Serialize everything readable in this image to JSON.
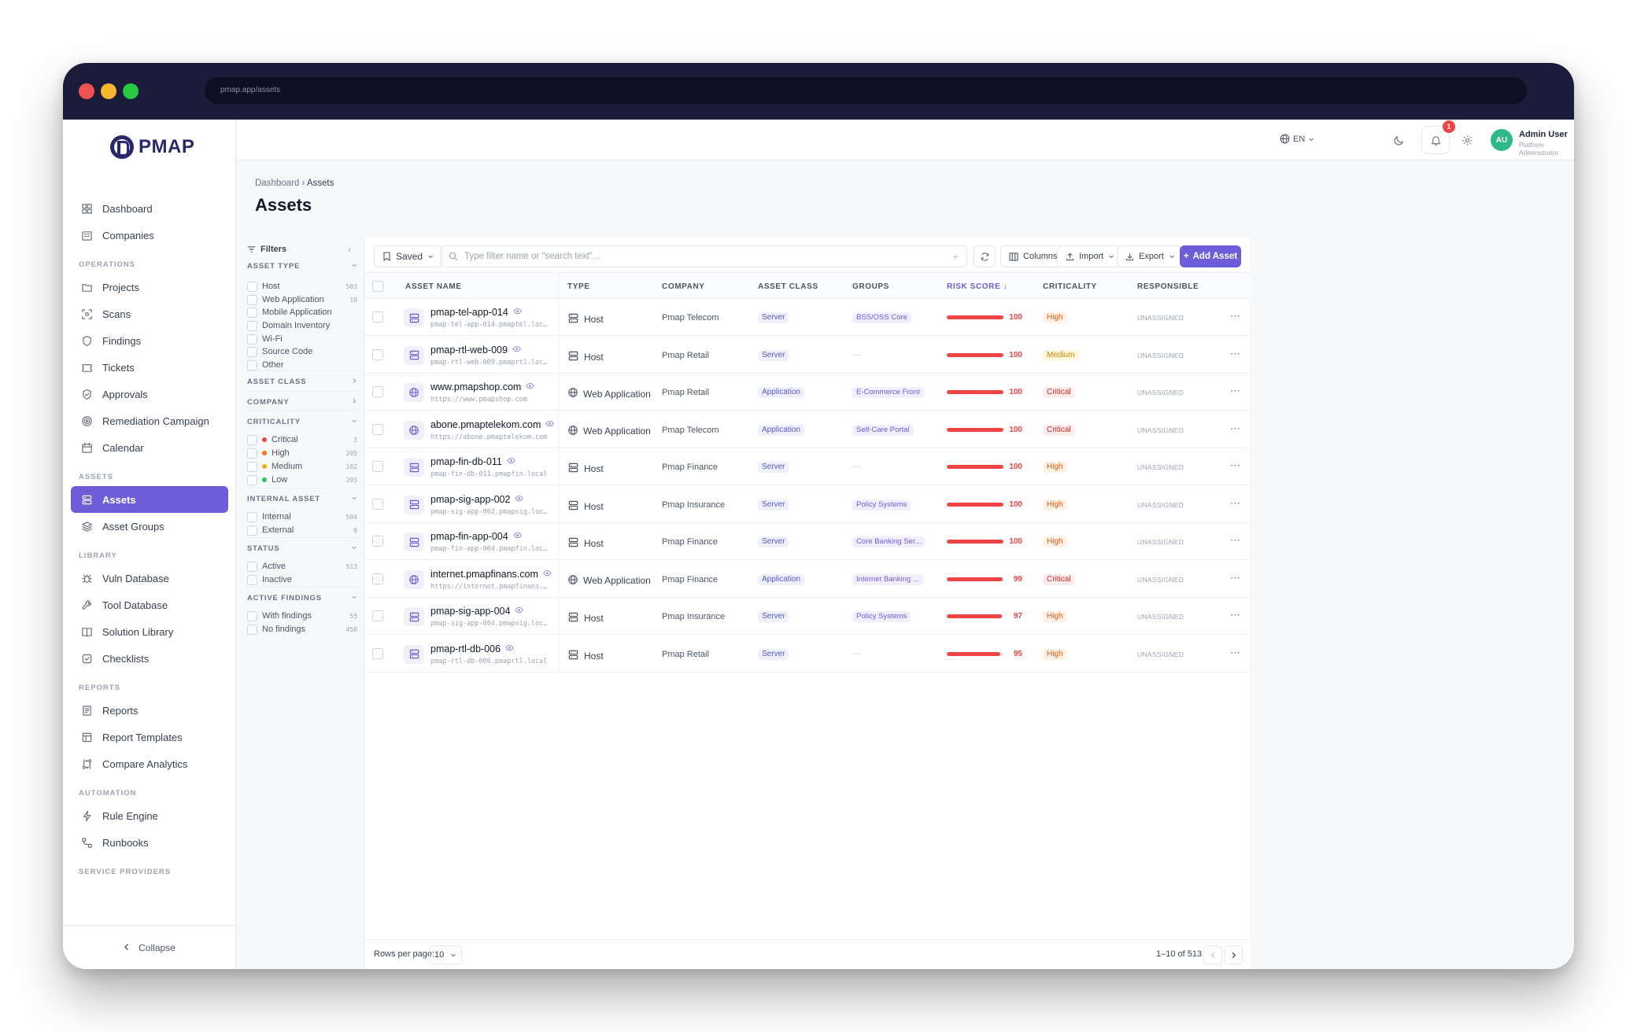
{
  "browser": {
    "url": "pmap.app/assets"
  },
  "brand": {
    "name": "PMAP"
  },
  "sidebar": {
    "items": [
      {
        "label": "Dashboard",
        "icon": "grid-icon"
      },
      {
        "label": "Companies",
        "icon": "building-icon"
      }
    ],
    "sections": [
      {
        "title": "OPERATIONS",
        "items": [
          {
            "label": "Projects",
            "icon": "folder-icon"
          },
          {
            "label": "Scans",
            "icon": "scan-icon"
          },
          {
            "label": "Findings",
            "icon": "shield-icon"
          },
          {
            "label": "Tickets",
            "icon": "ticket-icon"
          },
          {
            "label": "Approvals",
            "icon": "shield-check-icon"
          },
          {
            "label": "Remediation Campaign",
            "icon": "target-icon"
          },
          {
            "label": "Calendar",
            "icon": "calendar-icon"
          }
        ]
      },
      {
        "title": "ASSETS",
        "items": [
          {
            "label": "Assets",
            "icon": "server-icon",
            "active": true
          },
          {
            "label": "Asset Groups",
            "icon": "layers-icon"
          }
        ]
      },
      {
        "title": "LIBRARY",
        "items": [
          {
            "label": "Vuln Database",
            "icon": "bug-icon"
          },
          {
            "label": "Tool Database",
            "icon": "wrench-icon"
          },
          {
            "label": "Solution Library",
            "icon": "book-icon"
          },
          {
            "label": "Checklists",
            "icon": "checklist-icon"
          }
        ]
      },
      {
        "title": "REPORTS",
        "items": [
          {
            "label": "Reports",
            "icon": "report-icon"
          },
          {
            "label": "Report Templates",
            "icon": "template-icon"
          },
          {
            "label": "Compare Analytics",
            "icon": "compare-icon"
          }
        ]
      },
      {
        "title": "AUTOMATION",
        "items": [
          {
            "label": "Rule Engine",
            "icon": "bolt-icon"
          },
          {
            "label": "Runbooks",
            "icon": "workflow-icon"
          }
        ]
      },
      {
        "title": "SERVICE PROVIDERS",
        "items": []
      }
    ],
    "collapse_label": "Collapse"
  },
  "topbar": {
    "language": "EN",
    "notifications_count": "1",
    "user_initials": "AU",
    "user_name": "Admin User",
    "user_role": "Platform Administrator"
  },
  "breadcrumb": {
    "parent": "Dashboard",
    "current": "Assets"
  },
  "page_title": "Assets",
  "filters": {
    "title": "Filters",
    "sections": [
      {
        "title": "ASSET TYPE",
        "expanded": true,
        "options": [
          {
            "label": "Host",
            "count": "503"
          },
          {
            "label": "Web Application",
            "count": "10"
          },
          {
            "label": "Mobile Application",
            "count": ""
          },
          {
            "label": "Domain Inventory",
            "count": ""
          },
          {
            "label": "Wi-Fi",
            "count": ""
          },
          {
            "label": "Source Code",
            "count": ""
          },
          {
            "label": "Other",
            "count": ""
          }
        ]
      },
      {
        "title": "ASSET CLASS",
        "expanded": false,
        "options": []
      },
      {
        "title": "COMPANY",
        "expanded": false,
        "options": []
      },
      {
        "title": "CRITICALITY",
        "expanded": true,
        "options": [
          {
            "label": "Critical",
            "count": "3",
            "color": "#ef4444"
          },
          {
            "label": "High",
            "count": "205",
            "color": "#f97316"
          },
          {
            "label": "Medium",
            "count": "102",
            "color": "#eab308"
          },
          {
            "label": "Low",
            "count": "203",
            "color": "#22c55e"
          }
        ]
      },
      {
        "title": "INTERNAL ASSET",
        "expanded": true,
        "options": [
          {
            "label": "Internal",
            "count": "504"
          },
          {
            "label": "External",
            "count": "9"
          }
        ]
      },
      {
        "title": "STATUS",
        "expanded": true,
        "options": [
          {
            "label": "Active",
            "count": "513"
          },
          {
            "label": "Inactive",
            "count": ""
          }
        ]
      },
      {
        "title": "ACTIVE FINDINGS",
        "expanded": true,
        "options": [
          {
            "label": "With findings",
            "count": "55"
          },
          {
            "label": "No findings",
            "count": "458"
          }
        ]
      }
    ]
  },
  "toolbar": {
    "saved_label": "Saved",
    "search_placeholder": "Type filter name or \"search text\"...",
    "columns_label": "Columns",
    "import_label": "Import",
    "export_label": "Export",
    "add_label": "Add Asset"
  },
  "table": {
    "headers": [
      "ASSET NAME",
      "TYPE",
      "COMPANY",
      "ASSET CLASS",
      "GROUPS",
      "RISK SCORE ↓",
      "CRITICALITY",
      "RESPONSIBLE"
    ],
    "rows": [
      {
        "name": "pmap-tel-app-014",
        "host": "pmap-tel-app-014.pmaptel.local",
        "type": "Host",
        "company": "Pmap Telecom",
        "asset_class": "Server",
        "group": "BSS/OSS Core",
        "risk": 100,
        "criticality": "High",
        "responsible": "UNASSIGNED"
      },
      {
        "name": "pmap-rtl-web-009",
        "host": "pmap-rtl-web-009.pmaprtl.local",
        "type": "Host",
        "company": "Pmap Retail",
        "asset_class": "Server",
        "group": "—",
        "risk": 100,
        "criticality": "Medium",
        "responsible": "UNASSIGNED"
      },
      {
        "name": "www.pmapshop.com",
        "host": "https://www.pmapshop.com",
        "type": "Web Application",
        "company": "Pmap Retail",
        "asset_class": "Application",
        "group": "E-Commerce Front",
        "risk": 100,
        "criticality": "Critical",
        "responsible": "UNASSIGNED"
      },
      {
        "name": "abone.pmaptelekom.com",
        "host": "https://abone.pmaptelekom.com",
        "type": "Web Application",
        "company": "Pmap Telecom",
        "asset_class": "Application",
        "group": "Self-Care Portal",
        "risk": 100,
        "criticality": "Critical",
        "responsible": "UNASSIGNED"
      },
      {
        "name": "pmap-fin-db-011",
        "host": "pmap-fin-db-011.pmapfin.local",
        "type": "Host",
        "company": "Pmap Finance",
        "asset_class": "Server",
        "group": "—",
        "risk": 100,
        "criticality": "High",
        "responsible": "UNASSIGNED"
      },
      {
        "name": "pmap-sig-app-002",
        "host": "pmap-sig-app-002.pmapsig.local",
        "type": "Host",
        "company": "Pmap Insurance",
        "asset_class": "Server",
        "group": "Policy Systems",
        "risk": 100,
        "criticality": "High",
        "responsible": "UNASSIGNED"
      },
      {
        "name": "pmap-fin-app-004",
        "host": "pmap-fin-app-004.pmapfin.local",
        "type": "Host",
        "company": "Pmap Finance",
        "asset_class": "Server",
        "group": "Core Banking Ser...",
        "risk": 100,
        "criticality": "High",
        "responsible": "UNASSIGNED"
      },
      {
        "name": "internet.pmapfinans.com",
        "host": "https://internet.pmapfinans.c...",
        "type": "Web Application",
        "company": "Pmap Finance",
        "asset_class": "Application",
        "group": "Internet Banking ...",
        "risk": 99,
        "criticality": "Critical",
        "responsible": "UNASSIGNED"
      },
      {
        "name": "pmap-sig-app-004",
        "host": "pmap-sig-app-004.pmapsig.local",
        "type": "Host",
        "company": "Pmap Insurance",
        "asset_class": "Server",
        "group": "Policy Systems",
        "risk": 97,
        "criticality": "High",
        "responsible": "UNASSIGNED"
      },
      {
        "name": "pmap-rtl-db-006",
        "host": "pmap-rtl-db-006.pmaprtl.local",
        "type": "Host",
        "company": "Pmap Retail",
        "asset_class": "Server",
        "group": "—",
        "risk": 95,
        "criticality": "High",
        "responsible": "UNASSIGNED"
      }
    ]
  },
  "pagination": {
    "rows_label": "Rows per page:",
    "rows_value": "10",
    "range": "1–10 of 513"
  }
}
